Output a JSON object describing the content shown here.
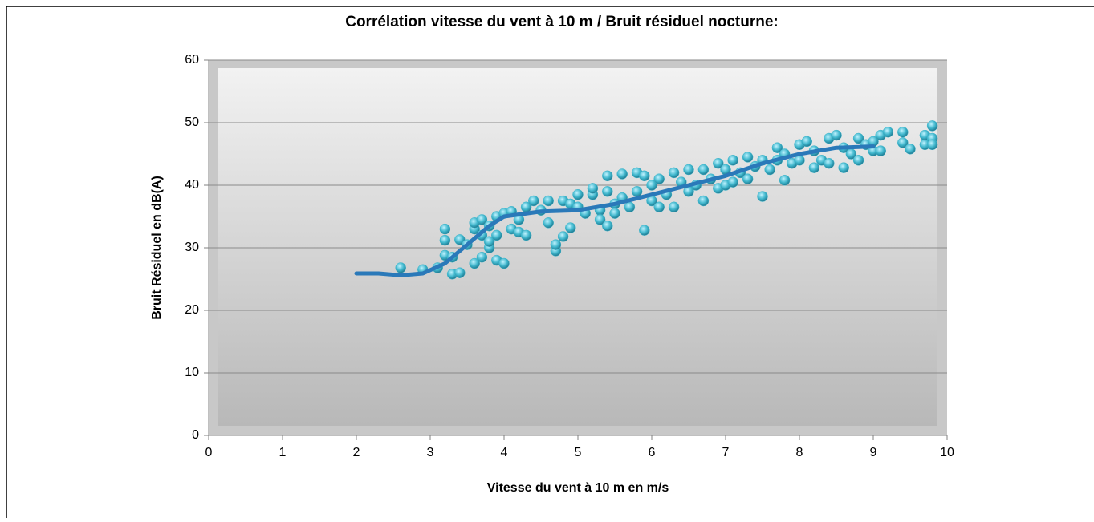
{
  "chart_data": {
    "type": "scatter",
    "title": "Corrélation vitesse du vent à 10 m / Bruit résiduel nocturne:",
    "xlabel": "Vitesse du vent à 10 m en m/s",
    "ylabel": "Bruit Résiduel en dB(A)",
    "xlim": [
      0,
      10
    ],
    "xticks": [
      0,
      1,
      2,
      3,
      4,
      5,
      6,
      7,
      8,
      9,
      10
    ],
    "ylim": [
      0,
      60
    ],
    "yticks": [
      0,
      10,
      20,
      30,
      40,
      50,
      60
    ],
    "grid": true,
    "series": [
      {
        "color": "#3fb6cc",
        "x": [
          2.6,
          2.9,
          3.1,
          3.2,
          3.2,
          3.2,
          3.3,
          3.3,
          3.4,
          3.4,
          3.5,
          3.6,
          3.6,
          3.6,
          3.7,
          3.7,
          3.7,
          3.8,
          3.8,
          3.8,
          3.9,
          3.9,
          3.9,
          4.0,
          4.0,
          4.1,
          4.1,
          4.2,
          4.2,
          4.3,
          4.3,
          4.4,
          4.5,
          4.6,
          4.6,
          4.7,
          4.7,
          4.8,
          4.8,
          4.9,
          4.9,
          5.0,
          5.0,
          5.1,
          5.2,
          5.2,
          5.3,
          5.3,
          5.4,
          5.4,
          5.4,
          5.5,
          5.5,
          5.6,
          5.6,
          5.7,
          5.8,
          5.8,
          5.9,
          5.9,
          6.0,
          6.0,
          6.1,
          6.1,
          6.2,
          6.3,
          6.3,
          6.4,
          6.5,
          6.5,
          6.6,
          6.7,
          6.7,
          6.8,
          6.9,
          6.9,
          7.0,
          7.0,
          7.1,
          7.1,
          7.2,
          7.3,
          7.3,
          7.4,
          7.5,
          7.5,
          7.6,
          7.7,
          7.7,
          7.8,
          7.8,
          7.9,
          8.0,
          8.0,
          8.1,
          8.2,
          8.2,
          8.3,
          8.4,
          8.4,
          8.5,
          8.6,
          8.6,
          8.7,
          8.8,
          8.8,
          8.9,
          9.0,
          9.0,
          9.1,
          9.1,
          9.2,
          9.4,
          9.4,
          9.5,
          9.7,
          9.7,
          9.8,
          9.8,
          9.8
        ],
        "values": [
          26.8,
          26.5,
          26.8,
          33,
          31.2,
          28.8,
          25.8,
          28.5,
          26,
          31.3,
          30.5,
          27.5,
          33,
          34,
          34.5,
          28.5,
          32,
          30,
          31,
          33.5,
          28,
          32,
          35,
          35.5,
          27.5,
          35.8,
          33,
          32.5,
          34.5,
          36.5,
          32,
          37.5,
          36,
          37.5,
          34,
          29.5,
          30.5,
          31.8,
          37.5,
          33.2,
          37,
          38.5,
          36.5,
          35.5,
          38.5,
          39.5,
          36,
          34.5,
          33.5,
          41.5,
          39,
          37,
          35.5,
          41.8,
          38,
          36.5,
          42,
          39,
          32.8,
          41.5,
          37.5,
          40,
          36.5,
          41,
          38.5,
          42,
          36.5,
          40.5,
          42.5,
          39,
          40,
          42.5,
          37.5,
          41,
          43.5,
          39.5,
          40,
          42.5,
          44,
          40.5,
          42,
          44.5,
          41,
          43,
          38.2,
          44,
          42.5,
          46,
          44,
          40.8,
          45,
          43.5,
          46.5,
          44,
          47,
          42.8,
          45.5,
          44,
          47.5,
          43.5,
          48,
          42.8,
          46,
          45,
          47.5,
          44,
          46.5,
          45.5,
          47,
          48,
          45.5,
          48.5,
          48.5,
          46.8,
          45.8,
          46.5,
          48,
          49.5,
          47.5,
          46.5
        ]
      },
      {
        "type": "line",
        "color": "#2a79b9",
        "x": [
          2.0,
          2.3,
          2.6,
          2.9,
          3.2,
          3.5,
          3.8,
          4.0,
          4.5,
          5.0,
          5.5,
          6.0,
          6.5,
          7.0,
          7.5,
          8.0,
          8.5,
          9.0
        ],
        "values": [
          25.9,
          25.9,
          25.6,
          25.9,
          27.5,
          30.5,
          33.5,
          35,
          35.8,
          36,
          37,
          38.5,
          40,
          41.5,
          43.5,
          45,
          46,
          46.2
        ]
      }
    ]
  }
}
